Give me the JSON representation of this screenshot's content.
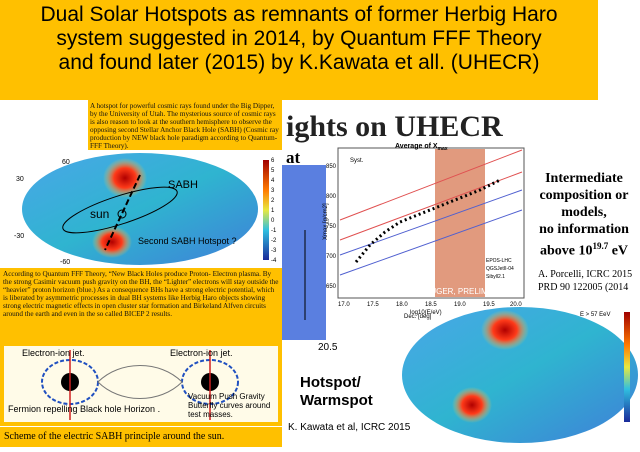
{
  "header": {
    "title": [
      "Dual Solar Hotspots as remnants of former Herbig Haro",
      "system suggested  in 2014, by Quantum FFF Theory",
      "and found later (2015) by K.Kawata et all. (UHECR)"
    ]
  },
  "left": {
    "intro": "A hotspot for powerful cosmic rays found under the Big Dipper, by the University of Utah. The mysterious source of cosmic rays is also reason to look at the southern hemisphere to observe the opposing second Stellar Anchor Black Hole (SABH) (Cosmic ray production by NEW black hole paradigm according to Quantum-FFF Theory).",
    "skymap": {
      "lat_labels": [
        "60",
        "30",
        "-30",
        "-60"
      ],
      "sabh": "SABH",
      "sun": "sun",
      "second": "Second SABH Hotspot ?",
      "colorbar": [
        "6",
        "5",
        "4",
        "3",
        "2",
        "1",
        "0",
        "-1",
        "-2",
        "-3",
        "-4"
      ]
    },
    "explanation": "According to  Quantum FFF Theory, “New Black Holes produce Proton- Electron plasma. By the strong Casimir vacuum push gravity on the BH, the “Lighter” electrons will stay outside the “heavier” proton horizon (blue.) As a consequence BHs have a strong electric potential, which is liberated by asymmetric processes in dual BH systems like Herbig Haro objects showing strong electric magnetic effects in open cluster star formation and Birkeland Alfven circuits around the earth and even in the so called BICEP 2  results.",
    "diagram": {
      "jet_left": "Electron-ion jet.",
      "jet_right": "Electron-ion jet.",
      "fermion": "Fermion repelling Black hole Horizon .",
      "vacuum": "Vacuum Push Gravity Butterfly curves around test masses."
    },
    "caption": "Scheme of the electric SABH principle around the sun."
  },
  "right": {
    "heading": "ights on UHECR",
    "at": "at",
    "blue_tick": "20.5",
    "plot": {
      "title": "Average of X",
      "title_sub": "max",
      "syst": "Syst.",
      "legend": [
        "EPOS-LHC",
        "QGSJetII-04",
        "Sibyll2.1"
      ],
      "watermark": "AUGER, PRELIMINARY",
      "xticks": [
        "17.0",
        "17.5",
        "18.0",
        "18.5",
        "19.0",
        "19.5",
        "20.0"
      ],
      "yticks": [
        "850",
        "800",
        "750",
        "700",
        "650"
      ],
      "xlabel": "log10(E/eV)",
      "ylabel": "Xmax [g/cm2]"
    },
    "note": [
      "Intermediate",
      "composition or",
      "models,",
      "no information"
    ],
    "note_above": "above 10",
    "note_exp": "19.7",
    "note_unit": " eV",
    "refs": [
      "A. Porcelli, ICRC 2015",
      "PRD 90 122005 (2014"
    ],
    "hotspot": [
      "Hotspot/",
      "Warmspot"
    ],
    "kawata": "K. Kawata et al, ICRC 2015",
    "skymap": {
      "dec": "Dec. [deg]",
      "energy": "E > 57 EeV"
    }
  }
}
